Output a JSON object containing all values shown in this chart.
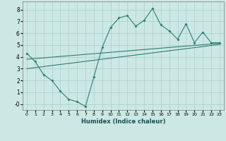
{
  "xlabel": "Humidex (Indice chaleur)",
  "ylabel": "",
  "bg_color": "#cce8e5",
  "grid_color": "#aacfcc",
  "line_color": "#2e7d70",
  "xlim": [
    -0.5,
    23.5
  ],
  "ylim": [
    -0.5,
    8.7
  ],
  "xticks": [
    0,
    1,
    2,
    3,
    4,
    5,
    6,
    7,
    8,
    9,
    10,
    11,
    12,
    13,
    14,
    15,
    16,
    17,
    18,
    19,
    20,
    21,
    22,
    23
  ],
  "yticks": [
    0,
    1,
    2,
    3,
    4,
    5,
    6,
    7,
    8
  ],
  "ytick_labels": [
    "-0",
    "1",
    "2",
    "3",
    "4",
    "5",
    "6",
    "7",
    "8"
  ],
  "scatter_line": {
    "x": [
      0,
      1,
      2,
      3,
      4,
      5,
      6,
      7,
      8,
      9,
      10,
      11,
      12,
      13,
      14,
      15,
      16,
      17,
      18,
      19,
      20,
      21,
      22,
      23
    ],
    "y": [
      4.3,
      3.6,
      2.5,
      2.0,
      1.1,
      0.4,
      0.2,
      -0.2,
      2.3,
      4.8,
      6.5,
      7.3,
      7.5,
      6.6,
      7.1,
      8.1,
      6.7,
      6.2,
      5.5,
      6.8,
      5.2,
      6.1,
      5.2,
      5.2
    ]
  },
  "reg_line1": {
    "x": [
      0,
      23
    ],
    "y": [
      3.8,
      5.15
    ]
  },
  "reg_line2": {
    "x": [
      0,
      23
    ],
    "y": [
      3.0,
      5.05
    ]
  }
}
